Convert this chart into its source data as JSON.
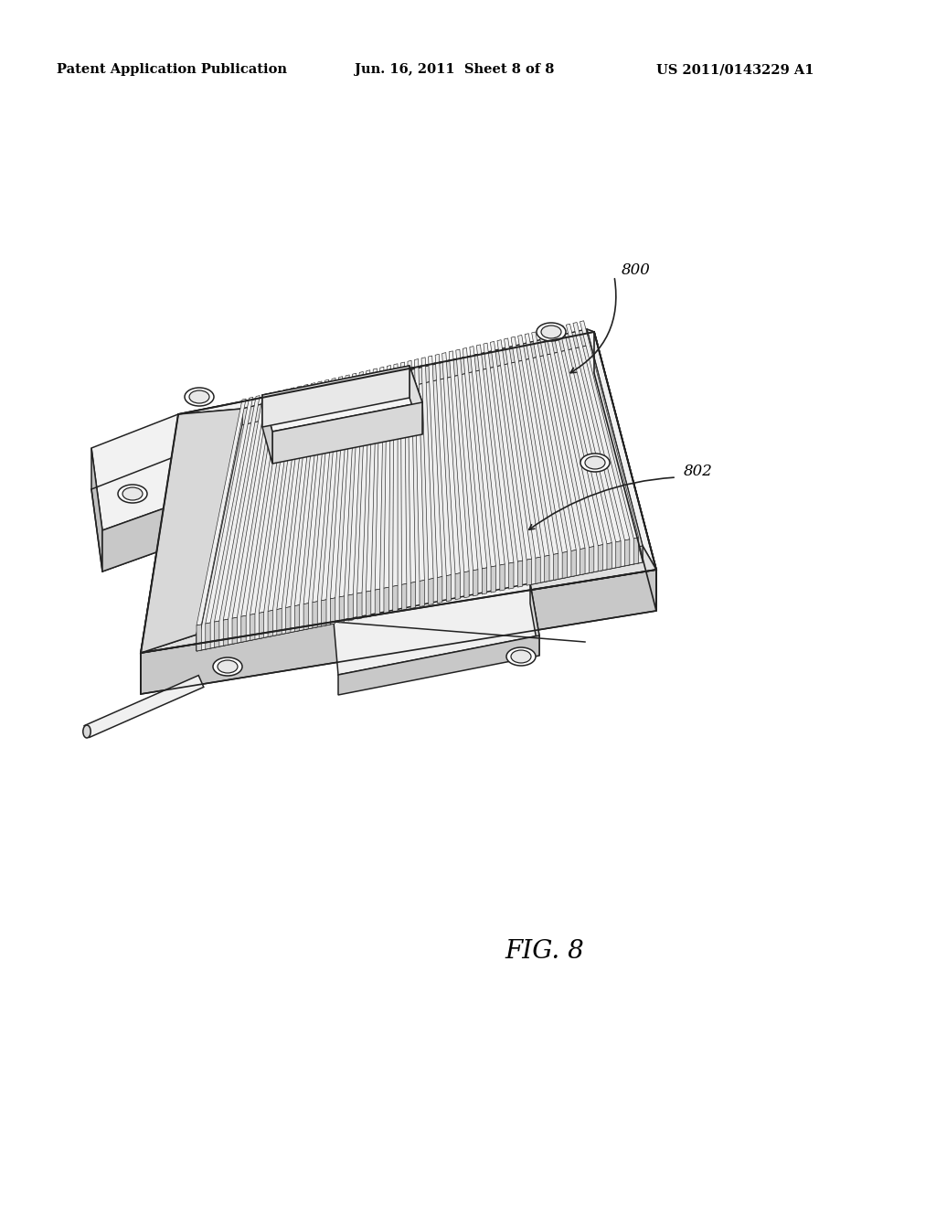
{
  "background_color": "#ffffff",
  "line_color": "#222222",
  "face_top": "#f2f2f2",
  "face_right": "#d5d5d5",
  "face_front": "#c8c8c8",
  "face_left": "#c0c0c0",
  "fin_top": "#f0f0f0",
  "fin_front": "#d0d0d0",
  "header_left": "Patent Application Publication",
  "header_mid": "Jun. 16, 2011  Sheet 8 of 8",
  "header_right": "US 2011/0143229 A1",
  "fig_label": "FIG. 8",
  "label_800": "800",
  "label_802": "802",
  "header_fontsize": 10.5,
  "label_fontsize": 12
}
